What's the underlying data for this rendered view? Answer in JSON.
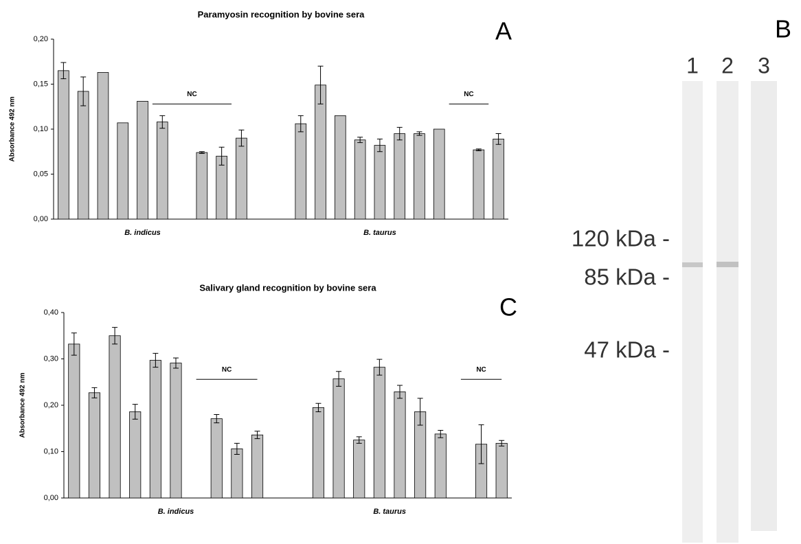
{
  "chart_data": [
    {
      "type": "bar",
      "title": "Paramyosin recognition by bovine sera",
      "panel_label": "A",
      "ylabel": "Absorbance 492 nm",
      "categories": [
        null,
        null,
        null,
        null,
        null,
        null,
        null,
        null,
        null,
        null,
        null,
        null,
        null,
        null,
        null,
        null,
        null,
        null,
        null,
        null,
        null,
        null,
        null
      ],
      "values": [
        0.165,
        0.142,
        0.163,
        0.107,
        0.131,
        0.108,
        null,
        0.074,
        0.07,
        0.09,
        null,
        null,
        0.106,
        0.149,
        0.115,
        0.088,
        0.082,
        0.095,
        0.095,
        0.1,
        null,
        0.077,
        0.089
      ],
      "error": [
        0.009,
        0.016,
        null,
        null,
        null,
        0.007,
        null,
        0.001,
        0.01,
        0.009,
        null,
        null,
        0.009,
        0.021,
        null,
        0.003,
        0.007,
        0.007,
        0.002,
        null,
        null,
        0.001,
        0.006
      ],
      "color": "#c0c0c0",
      "ylim": [
        0,
        0.2
      ],
      "yticks": [
        {
          "value": 0,
          "label": "0,00"
        },
        {
          "value": 0.05,
          "label": "0,05"
        },
        {
          "value": 0.1,
          "label": "0,10"
        },
        {
          "value": 0.15,
          "label": "0,15"
        },
        {
          "value": 0.2,
          "label": "0,20"
        }
      ],
      "annotations": [
        "NC",
        "NC"
      ],
      "group_labels": [
        "B. indicus",
        "B. taurus"
      ]
    },
    {
      "type": "bar",
      "title": "Salivary gland recognition by bovine sera",
      "panel_label": "C",
      "ylabel": "Absorbance 492 nm",
      "categories": [
        null,
        null,
        null,
        null,
        null,
        null,
        null,
        null,
        null,
        null,
        null,
        null,
        null,
        null,
        null,
        null,
        null,
        null,
        null,
        null,
        null,
        null
      ],
      "values": [
        0.332,
        0.227,
        0.35,
        0.186,
        0.297,
        0.291,
        null,
        0.171,
        0.106,
        0.136,
        null,
        null,
        0.195,
        0.257,
        0.125,
        0.282,
        0.229,
        0.186,
        0.138,
        null,
        0.116,
        0.118
      ],
      "error": [
        0.024,
        0.011,
        0.018,
        0.016,
        0.015,
        0.011,
        null,
        0.009,
        0.012,
        0.008,
        null,
        null,
        0.009,
        0.016,
        0.007,
        0.017,
        0.014,
        0.029,
        0.008,
        null,
        0.042,
        0.006
      ],
      "color": "#c0c0c0",
      "ylim": [
        0,
        0.4
      ],
      "yticks": [
        {
          "value": 0,
          "label": "0,00"
        },
        {
          "value": 0.1,
          "label": "0,10"
        },
        {
          "value": 0.2,
          "label": "0,20"
        },
        {
          "value": 0.3,
          "label": "0,30"
        },
        {
          "value": 0.4,
          "label": "0,40"
        }
      ],
      "annotations": [
        "NC",
        "NC"
      ],
      "group_labels": [
        "B. indicus",
        "B. taurus"
      ]
    }
  ],
  "blot": {
    "panel_label": "B",
    "lanes": [
      "1",
      "2",
      "3"
    ],
    "markers": [
      "120 kDa -",
      "85 kDa -",
      "47 kDa -"
    ]
  }
}
